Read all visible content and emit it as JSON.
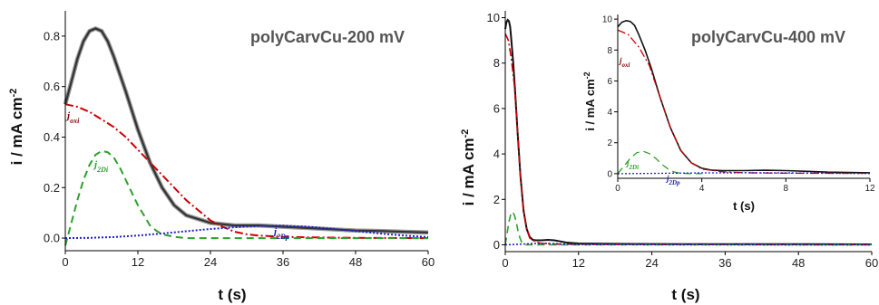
{
  "chart_data": [
    {
      "type": "line",
      "title": "polyCarvCu-200 mV",
      "xlabel": "t (s)",
      "ylabel": "i / mA cm-2",
      "xlim": [
        0,
        60
      ],
      "ylim": [
        -0.05,
        0.9
      ],
      "xticks": [
        "0",
        "12",
        "24",
        "36",
        "48",
        "60"
      ],
      "yticks": [
        "0.0",
        "0.2",
        "0.4",
        "0.6",
        "0.8"
      ],
      "series": [
        {
          "name": "",
          "color": "#333333",
          "style": "solid",
          "x": [
            0,
            1,
            2,
            3,
            4,
            5,
            6,
            7,
            8,
            10,
            12,
            14,
            16,
            18,
            20,
            24,
            28,
            32,
            36,
            40,
            44,
            48,
            52,
            56,
            60
          ],
          "y": [
            0.53,
            0.62,
            0.71,
            0.78,
            0.82,
            0.83,
            0.82,
            0.78,
            0.72,
            0.58,
            0.43,
            0.3,
            0.2,
            0.13,
            0.09,
            0.06,
            0.05,
            0.05,
            0.045,
            0.04,
            0.035,
            0.03,
            0.028,
            0.025,
            0.022
          ]
        },
        {
          "name": "joxi",
          "color": "#cc0000",
          "style": "dashdot",
          "x": [
            0,
            2,
            4,
            6,
            8,
            10,
            12,
            14,
            16,
            18,
            20,
            22,
            24,
            26,
            28,
            30,
            32,
            36,
            40,
            48,
            60
          ],
          "y": [
            0.53,
            0.52,
            0.5,
            0.47,
            0.44,
            0.4,
            0.35,
            0.3,
            0.25,
            0.2,
            0.15,
            0.11,
            0.07,
            0.045,
            0.025,
            0.015,
            0.01,
            0.005,
            0.003,
            0.001,
            0.0
          ]
        },
        {
          "name": "j2Di",
          "color": "#2ca02c",
          "style": "dashed",
          "x": [
            0,
            1,
            2,
            3,
            4,
            5,
            6,
            7,
            8,
            9,
            10,
            11,
            12,
            13,
            14,
            15,
            16,
            18,
            20,
            24,
            30,
            40,
            50,
            60
          ],
          "y": [
            -0.03,
            0.06,
            0.15,
            0.23,
            0.29,
            0.33,
            0.345,
            0.34,
            0.32,
            0.28,
            0.23,
            0.18,
            0.13,
            0.09,
            0.05,
            0.03,
            0.015,
            0.005,
            0.0,
            0.0,
            0.0,
            0.0,
            0.0,
            0.0
          ]
        },
        {
          "name": "j2Dp",
          "color": "#1f1fd0",
          "style": "dotted",
          "x": [
            0,
            4,
            8,
            12,
            16,
            20,
            24,
            28,
            32,
            36,
            40,
            44,
            48,
            52,
            56,
            60
          ],
          "y": [
            0.0,
            0.001,
            0.004,
            0.01,
            0.018,
            0.027,
            0.036,
            0.043,
            0.048,
            0.049,
            0.045,
            0.037,
            0.028,
            0.018,
            0.01,
            0.004
          ]
        }
      ],
      "annotations": [
        {
          "text": "joxi",
          "color": "#8b0000"
        },
        {
          "text": "j2Di",
          "color": "#2ca02c"
        },
        {
          "text": "j2Dp",
          "color": "#1a1aa0"
        }
      ]
    },
    {
      "type": "line",
      "title": "polyCarvCu-400 mV",
      "xlabel": "t (s)",
      "ylabel": "i / mA cm-2",
      "xlim": [
        0,
        60
      ],
      "ylim": [
        -0.3,
        10.3
      ],
      "xticks": [
        "0",
        "12",
        "24",
        "36",
        "48",
        "60"
      ],
      "yticks": [
        "0",
        "2",
        "4",
        "6",
        "8",
        "10"
      ],
      "series": [
        {
          "name": "",
          "color": "#111111",
          "style": "solid",
          "x": [
            0,
            0.2,
            0.4,
            0.6,
            0.8,
            1.0,
            1.3,
            1.6,
            2.0,
            2.5,
            3.0,
            3.5,
            4.0,
            4.5,
            5,
            6,
            7,
            8,
            9,
            10,
            12,
            20,
            30,
            40,
            50,
            60
          ],
          "y": [
            9.5,
            9.8,
            9.9,
            9.85,
            9.6,
            9.0,
            8.0,
            6.8,
            5.0,
            3.0,
            1.5,
            0.7,
            0.35,
            0.22,
            0.2,
            0.2,
            0.22,
            0.2,
            0.15,
            0.1,
            0.06,
            0.04,
            0.03,
            0.03,
            0.025,
            0.02
          ]
        },
        {
          "name": "joxi",
          "color": "#cc0000",
          "style": "dashdot",
          "x": [
            0,
            0.5,
            1.0,
            1.5,
            2.0,
            2.5,
            3.0,
            3.5,
            4.0,
            5,
            6,
            8,
            12,
            60
          ],
          "y": [
            9.3,
            9.0,
            8.2,
            7.0,
            5.0,
            3.0,
            1.5,
            0.7,
            0.3,
            0.12,
            0.06,
            0.03,
            0.02,
            0.0
          ]
        },
        {
          "name": "j2Di",
          "color": "#2ca02c",
          "style": "dashed",
          "x": [
            0,
            0.3,
            0.6,
            0.9,
            1.2,
            1.5,
            1.8,
            2.1,
            2.4,
            2.7,
            3.0,
            3.5,
            4,
            60
          ],
          "y": [
            0,
            0.5,
            1.0,
            1.35,
            1.45,
            1.3,
            1.0,
            0.6,
            0.3,
            0.1,
            0.03,
            0,
            0,
            0
          ]
        },
        {
          "name": "j2Dp",
          "color": "#1f1fd0",
          "style": "dotted",
          "x": [
            0,
            2,
            4,
            6,
            8,
            10,
            12,
            60
          ],
          "y": [
            0,
            0.02,
            0.05,
            0.06,
            0.05,
            0.03,
            0.01,
            0
          ]
        }
      ],
      "inset": {
        "xlim": [
          0,
          12
        ],
        "ylim": [
          -0.3,
          10.3
        ],
        "xticks": [
          "0",
          "4",
          "8",
          "12"
        ],
        "yticks": [
          "0",
          "2",
          "4",
          "6",
          "8",
          "10"
        ],
        "xlabel": "t (s)",
        "ylabel": "i / mA cm-2",
        "annotations": [
          {
            "text": "joxi",
            "color": "#8b0000"
          },
          {
            "text": "j2Di",
            "color": "#2ca02c"
          },
          {
            "text": "j2Dp",
            "color": "#1a1aa0"
          }
        ]
      }
    }
  ]
}
